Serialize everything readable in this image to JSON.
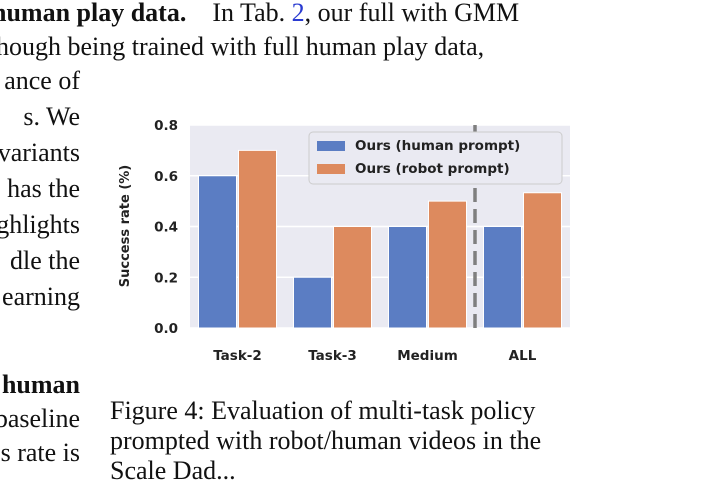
{
  "body_text": {
    "line1_bold": "human play data.",
    "line1_rest_a": "In Tab. ",
    "line1_ref": "2",
    "line1_rest_b": ", our full with GMM",
    "line2": "hough being trained with full human play data,",
    "left_fragments": [
      "ance of",
      "s. We",
      "variants",
      "has the",
      "ghlights",
      "dle the",
      "earning"
    ],
    "lower_bold": "human",
    "lower_fragments": [
      "baseline",
      "s rate is"
    ]
  },
  "caption": {
    "line1": "Figure 4: Evaluation of multi-task policy",
    "line2": "prompted with robot/human videos in the",
    "line3": "Scale Dad..."
  },
  "chart_data": {
    "type": "bar",
    "categories": [
      "Task-2",
      "Task-3",
      "Medium",
      "ALL"
    ],
    "series": [
      {
        "name": "Ours (human prompt)",
        "values": [
          0.6,
          0.2,
          0.4,
          0.4
        ],
        "color": "#5b7dc3"
      },
      {
        "name": "Ours (robot prompt)",
        "values": [
          0.7,
          0.4,
          0.5,
          0.533
        ],
        "color": "#dd8a5e"
      }
    ],
    "ylabel": "Success rate (%)",
    "ylim": [
      0,
      0.8
    ],
    "yticks": [
      "0.0",
      "0.2",
      "0.4",
      "0.6",
      "0.8"
    ],
    "grid": true,
    "legend_position": "top-right",
    "divider": "dashed vertical line between Medium and ALL",
    "background": "#eaeaf2"
  }
}
